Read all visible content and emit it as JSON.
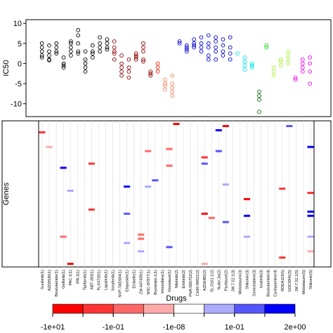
{
  "chart_data": [
    {
      "type": "scatter",
      "ylabel": "IC50",
      "xlim": [
        -2.2,
        39.9
      ],
      "ylim": [
        -13.2,
        10.9
      ],
      "yticks": [
        -10,
        -5,
        0,
        5,
        10
      ],
      "series": [
        {
          "color": "#000000",
          "x": [
            0,
            0,
            0,
            0,
            0,
            1,
            1,
            1,
            1,
            1,
            2,
            2,
            2,
            2,
            3,
            3,
            3,
            3,
            4,
            4,
            4,
            4,
            4,
            5,
            5,
            5,
            5,
            5,
            6,
            6,
            6,
            6,
            6,
            7,
            7,
            7,
            7,
            8,
            8,
            8,
            8,
            9,
            9,
            9,
            9
          ],
          "values": [
            5,
            4,
            3,
            2,
            1.5,
            4.5,
            3,
            2,
            1,
            0.8,
            5,
            4,
            3,
            2.5,
            1.5,
            0,
            -0.5,
            -1,
            5.5,
            5,
            4,
            3,
            2,
            8.3,
            7,
            5,
            3,
            2.5,
            3,
            1,
            0,
            -1,
            -2,
            4.5,
            3,
            2.5,
            1.5,
            6.5,
            5,
            4,
            3,
            6,
            5,
            4,
            3.5
          ]
        },
        {
          "color": "#8b0000",
          "x": [
            10,
            10,
            10,
            10,
            10,
            11,
            11,
            11,
            11,
            11,
            12,
            12,
            12,
            12,
            13,
            13,
            13,
            13,
            14,
            14,
            14,
            14,
            14,
            15,
            15,
            15
          ],
          "values": [
            5.5,
            4,
            3,
            2.5,
            1,
            2,
            0,
            -1,
            -2,
            -3,
            1,
            -1,
            -2,
            -3.5,
            2.5,
            2,
            1.5,
            1,
            5,
            4,
            3,
            1,
            0.5,
            -2,
            -2.5,
            -3
          ]
        },
        {
          "color": "#ee2200",
          "x": [
            16,
            16,
            16
          ],
          "values": [
            0,
            -1,
            -2
          ]
        },
        {
          "color": "#f08860",
          "x": [
            17,
            17,
            17,
            17,
            18,
            18,
            18,
            18,
            18
          ],
          "values": [
            -4,
            -5,
            -5.5,
            -6.5,
            -3,
            -5,
            -6,
            -7,
            -8
          ]
        },
        {
          "color": "#0000cd",
          "x": [
            19,
            19,
            20,
            20,
            20,
            20,
            21,
            21,
            21,
            21,
            22,
            22,
            22,
            22,
            23,
            23,
            23,
            23,
            23,
            24,
            24,
            24,
            24,
            24,
            25,
            25,
            25,
            25,
            26,
            26,
            26,
            26
          ],
          "values": [
            5.5,
            5,
            4.5,
            4,
            3.5,
            3,
            6,
            5,
            4.5,
            4,
            6.5,
            5,
            4,
            3,
            7,
            5,
            4,
            2,
            1,
            6.5,
            5.5,
            4,
            3,
            1,
            6,
            4.5,
            3,
            2,
            6.5,
            4,
            2.5,
            1
          ]
        },
        {
          "color": "#00e5ee",
          "x": [
            27,
            28,
            28,
            28,
            28,
            29,
            29,
            29
          ],
          "values": [
            2.5,
            1.5,
            0.5,
            -0.5,
            -1.5,
            0,
            -0.5,
            -1
          ]
        },
        {
          "color": "#006400",
          "x": [
            30,
            30,
            30,
            30
          ],
          "values": [
            -7,
            -8,
            -9,
            -12
          ]
        },
        {
          "color": "#22dd22",
          "x": [
            31,
            31
          ],
          "values": [
            4.5,
            4
          ]
        },
        {
          "color": "#aaee44",
          "x": [
            32,
            32,
            32,
            33,
            33,
            33,
            34,
            34,
            34,
            34
          ],
          "values": [
            -1,
            -2,
            -3,
            1,
            0.5,
            -0.5,
            3,
            2,
            1,
            0
          ]
        },
        {
          "color": "#ee00ee",
          "x": [
            35,
            35,
            36,
            36,
            36,
            36,
            37,
            37,
            37,
            37
          ],
          "values": [
            -3.5,
            -4,
            1,
            0,
            -1,
            -2,
            1.5,
            0,
            -2,
            -5
          ]
        }
      ]
    },
    {
      "type": "heatmap",
      "xlabel": "Drugs",
      "ylabel": "Genes",
      "ylim": [
        0,
        70
      ],
      "categories": [
        "Sunitinib(1)",
        "AZD0530(1)",
        "Bicalutamide(1)",
        "Gefitinib(1)",
        "PAC-1(1)",
        "IPA-3(1)",
        "Tipifarnib(1)",
        "ABT-263(1)",
        "PLX4720(1)",
        "Lapatinib(1)",
        "Sorafenib(1)",
        "NVP-TAE684(1)",
        "Etoposide(1)",
        "Embelin(1)",
        "ZM-447439(1)",
        "NSC-87877(1)",
        "Bryostatin.1(1)",
        "Vinorelbine(1)",
        "Docetaxel(1)",
        "Nilotinib(2)",
        "Erlotinib(2)",
        "PHA-665752(2)",
        "CHIR-99021(2)",
        "AZD6482(2)",
        "SL.0101.1(2)",
        "Nutlin.3a(2)",
        "Paclitaxel(2)",
        "JW.7.52.1(3)",
        "Midostaurin(3)",
        "Shikonin(3)",
        "Gemcitabine(3)",
        "Imatinib(3)",
        "Bicalutamide(4)",
        "Cyclopamine(4)",
        "RDEA119(5)",
        "GDC0941(5)",
        "JW.7.52.1(5)",
        "Midostaurin(5)",
        "Shikonin(5)"
      ],
      "category_colors": [
        "#000000",
        "#000000",
        "#000000",
        "#cccc00",
        "#000000",
        "#000000",
        "#000000",
        "#000000",
        "#000000",
        "#cccc00",
        "#000000",
        "#0000cc",
        "#ee0000",
        "#000000",
        "#000000",
        "#000000",
        "#000000",
        "#ee0000",
        "#ee0000",
        "#000000",
        "#000000",
        "#0000cc",
        "#0000cc",
        "#0000cc",
        "#0000cc",
        "#0000cc",
        "#cccc00",
        "#000000",
        "#000000",
        "#0000cc",
        "#ee0000",
        "#000000",
        "#000000",
        "#ee0000",
        "#000000",
        "#0000cc",
        "#000000",
        "#000000",
        "#0000cc"
      ],
      "cells": [
        {
          "col": 0,
          "row": 5,
          "value": -3
        },
        {
          "col": 1,
          "row": 12,
          "value": -0.02
        },
        {
          "col": 3,
          "row": 22,
          "value": 1.5
        },
        {
          "col": 4,
          "row": 33,
          "value": 0.05
        },
        {
          "col": 4,
          "row": 68,
          "value": -8
        },
        {
          "col": 3,
          "row": 55,
          "value": -0.08
        },
        {
          "col": 7,
          "row": 20,
          "value": -3
        },
        {
          "col": 7,
          "row": 42,
          "value": -3
        },
        {
          "col": 12,
          "row": 58,
          "value": 0.05
        },
        {
          "col": 12,
          "row": 31,
          "value": 1.5
        },
        {
          "col": 12,
          "row": 44,
          "value": 0.5
        },
        {
          "col": 14,
          "row": 54,
          "value": -0.08
        },
        {
          "col": 14,
          "row": 56,
          "value": -0.08
        },
        {
          "col": 14,
          "row": 62,
          "value": 0.05
        },
        {
          "col": 15,
          "row": 14,
          "value": -0.08
        },
        {
          "col": 15,
          "row": 31,
          "value": 0.05
        },
        {
          "col": 16,
          "row": 28,
          "value": 0.5
        },
        {
          "col": 18,
          "row": 13,
          "value": -0.08
        },
        {
          "col": 18,
          "row": 21,
          "value": -0.08
        },
        {
          "col": 18,
          "row": 60,
          "value": 0.5
        },
        {
          "col": 19,
          "row": 1,
          "value": -8
        },
        {
          "col": 23,
          "row": 17,
          "value": -3
        },
        {
          "col": 23,
          "row": 20,
          "value": 0.5
        },
        {
          "col": 23,
          "row": 44,
          "value": -8
        },
        {
          "col": 23,
          "row": 68,
          "value": -0.02
        },
        {
          "col": 24,
          "row": 46,
          "value": -0.08
        },
        {
          "col": 25,
          "row": 14,
          "value": 0.5
        },
        {
          "col": 25,
          "row": 4,
          "value": 1.5
        },
        {
          "col": 26,
          "row": 2,
          "value": -8
        },
        {
          "col": 26,
          "row": 30,
          "value": 0.05
        },
        {
          "col": 26,
          "row": 48,
          "value": 0.5
        },
        {
          "col": 29,
          "row": 37,
          "value": -8
        },
        {
          "col": 29,
          "row": 45,
          "value": 1.5
        },
        {
          "col": 29,
          "row": 55,
          "value": 0.05
        },
        {
          "col": 34,
          "row": 32,
          "value": -3
        },
        {
          "col": 34,
          "row": 65,
          "value": -3
        },
        {
          "col": 35,
          "row": 2,
          "value": 0.5
        },
        {
          "col": 38,
          "row": 12,
          "value": 1.5
        },
        {
          "col": 38,
          "row": 34,
          "value": -3
        },
        {
          "col": 38,
          "row": 43,
          "value": 1.5
        },
        {
          "col": 38,
          "row": 45,
          "value": 1.5
        },
        {
          "col": 38,
          "row": 55,
          "value": 0.05
        },
        {
          "col": 38,
          "row": 62,
          "value": -0.02
        }
      ],
      "colorbar": {
        "colors": [
          "#ff0000",
          "#ff3333",
          "#ff6666",
          "#ffaaaa",
          "#ffffff",
          "#aaaaff",
          "#5555ff",
          "#0000ff"
        ],
        "ticks": [
          {
            "value": -10,
            "label": "-1e+01"
          },
          {
            "value": -0.1,
            "label": "-1e-01"
          },
          {
            "value": -1e-08,
            "label": "-1e-08"
          },
          {
            "value": 0.1,
            "label": "1e-01"
          },
          {
            "value": 2,
            "label": "2e+00"
          }
        ]
      }
    }
  ]
}
